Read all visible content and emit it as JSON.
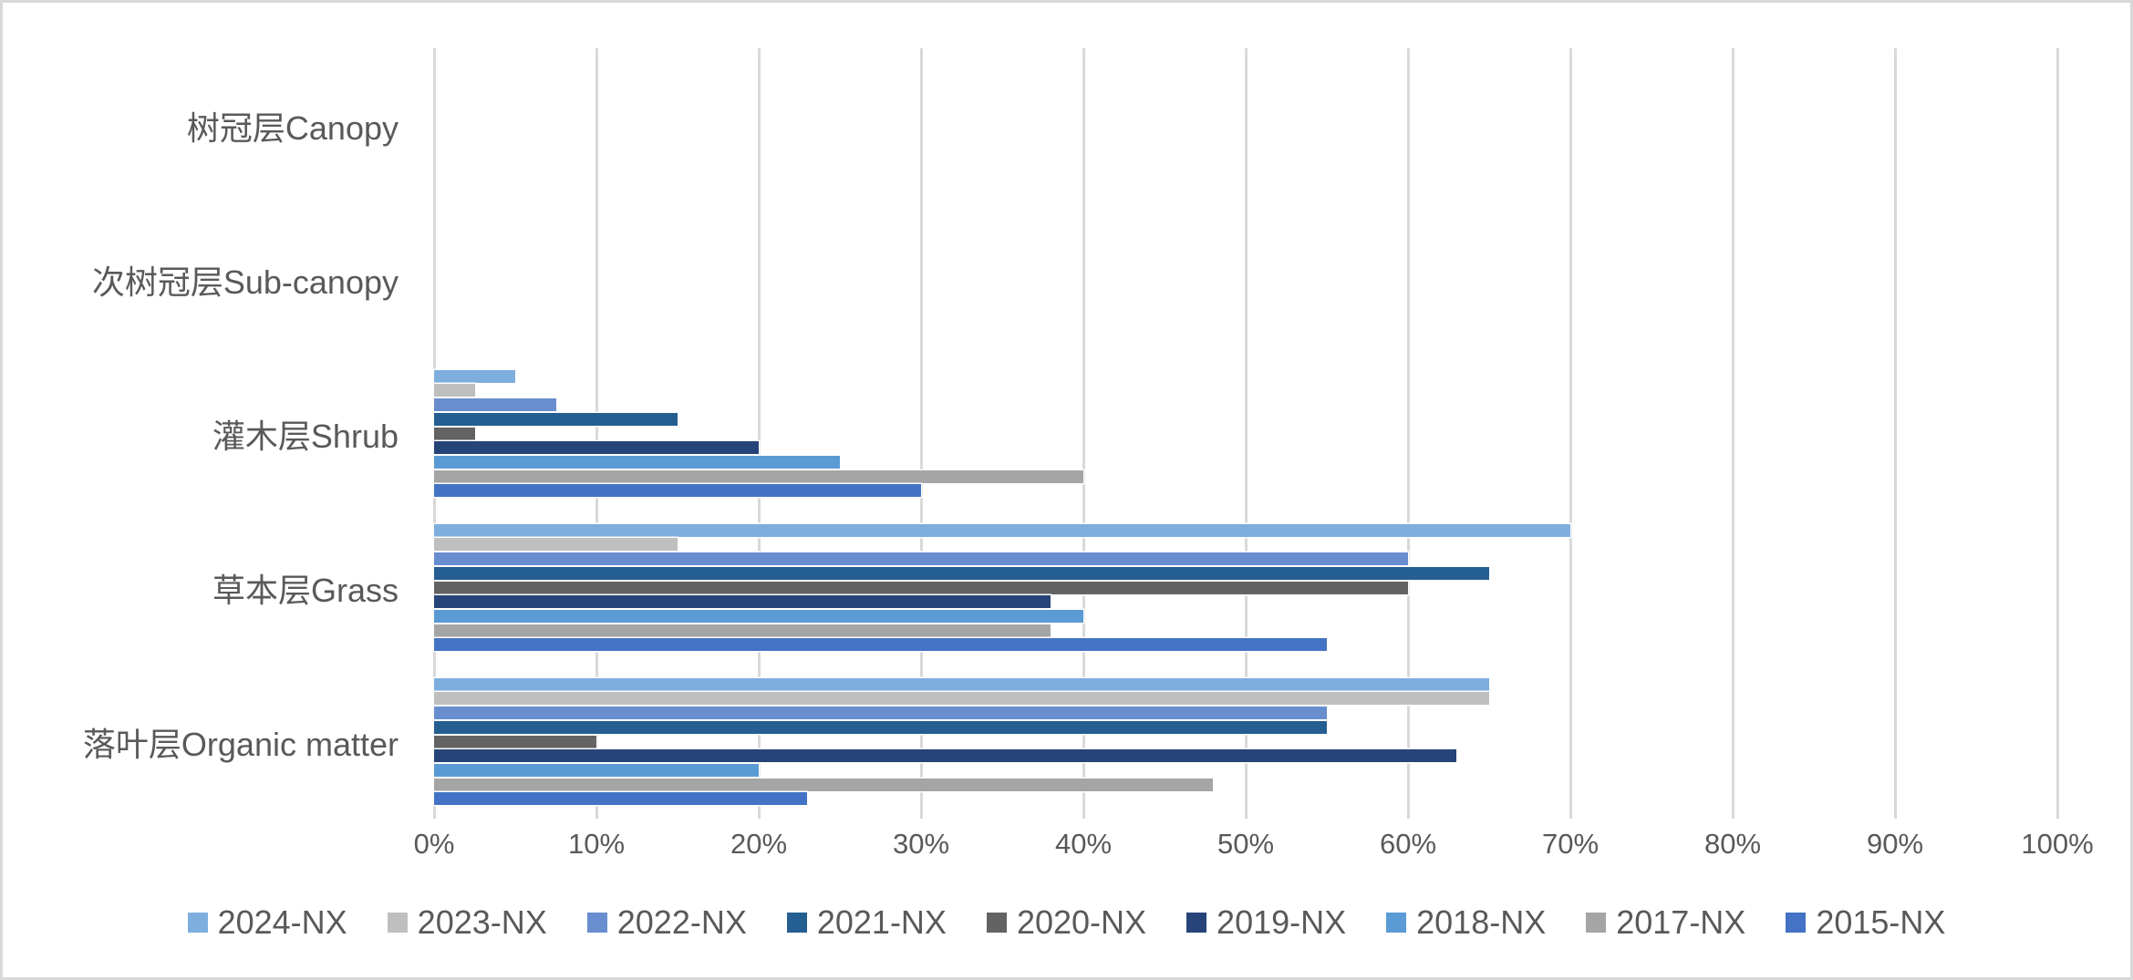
{
  "chart_data": {
    "type": "bar",
    "orientation": "horizontal",
    "title": "",
    "xlabel": "",
    "ylabel": "",
    "categories": [
      "树冠层Canopy",
      "次树冠层Sub-canopy",
      "灌木层Shrub",
      "草本层Grass",
      "落叶层Organic matter"
    ],
    "series": [
      {
        "name": "2024-NX",
        "color": "#7EAEDE",
        "values": [
          0,
          0,
          5,
          70,
          65
        ]
      },
      {
        "name": "2023-NX",
        "color": "#BFBFBF",
        "values": [
          0,
          0,
          2.5,
          15,
          65
        ]
      },
      {
        "name": "2022-NX",
        "color": "#698ED0",
        "values": [
          0,
          0,
          7.5,
          60,
          55
        ]
      },
      {
        "name": "2021-NX",
        "color": "#255E91",
        "values": [
          0,
          0,
          15,
          65,
          55
        ]
      },
      {
        "name": "2020-NX",
        "color": "#636363",
        "values": [
          0,
          0,
          2.5,
          60,
          10
        ]
      },
      {
        "name": "2019-NX",
        "color": "#264478",
        "values": [
          0,
          0,
          20,
          38,
          63
        ]
      },
      {
        "name": "2018-NX",
        "color": "#5B9BD5",
        "values": [
          0,
          0,
          25,
          40,
          20
        ]
      },
      {
        "name": "2017-NX",
        "color": "#A5A5A5",
        "values": [
          0,
          0,
          40,
          38,
          48
        ]
      },
      {
        "name": "2015-NX",
        "color": "#4472C4",
        "values": [
          0,
          0,
          30,
          55,
          23
        ]
      }
    ],
    "x_axis": {
      "min": 0,
      "max": 100,
      "tick_step": 10,
      "tick_labels": [
        "0%",
        "10%",
        "20%",
        "30%",
        "40%",
        "50%",
        "60%",
        "70%",
        "80%",
        "90%",
        "100%"
      ]
    },
    "grid": true,
    "legend_position": "bottom",
    "colors": {
      "text": "#595959",
      "gridline": "#D9D9D9",
      "background": "#FFFFFF",
      "frame_border": "#D8D8D8"
    }
  }
}
